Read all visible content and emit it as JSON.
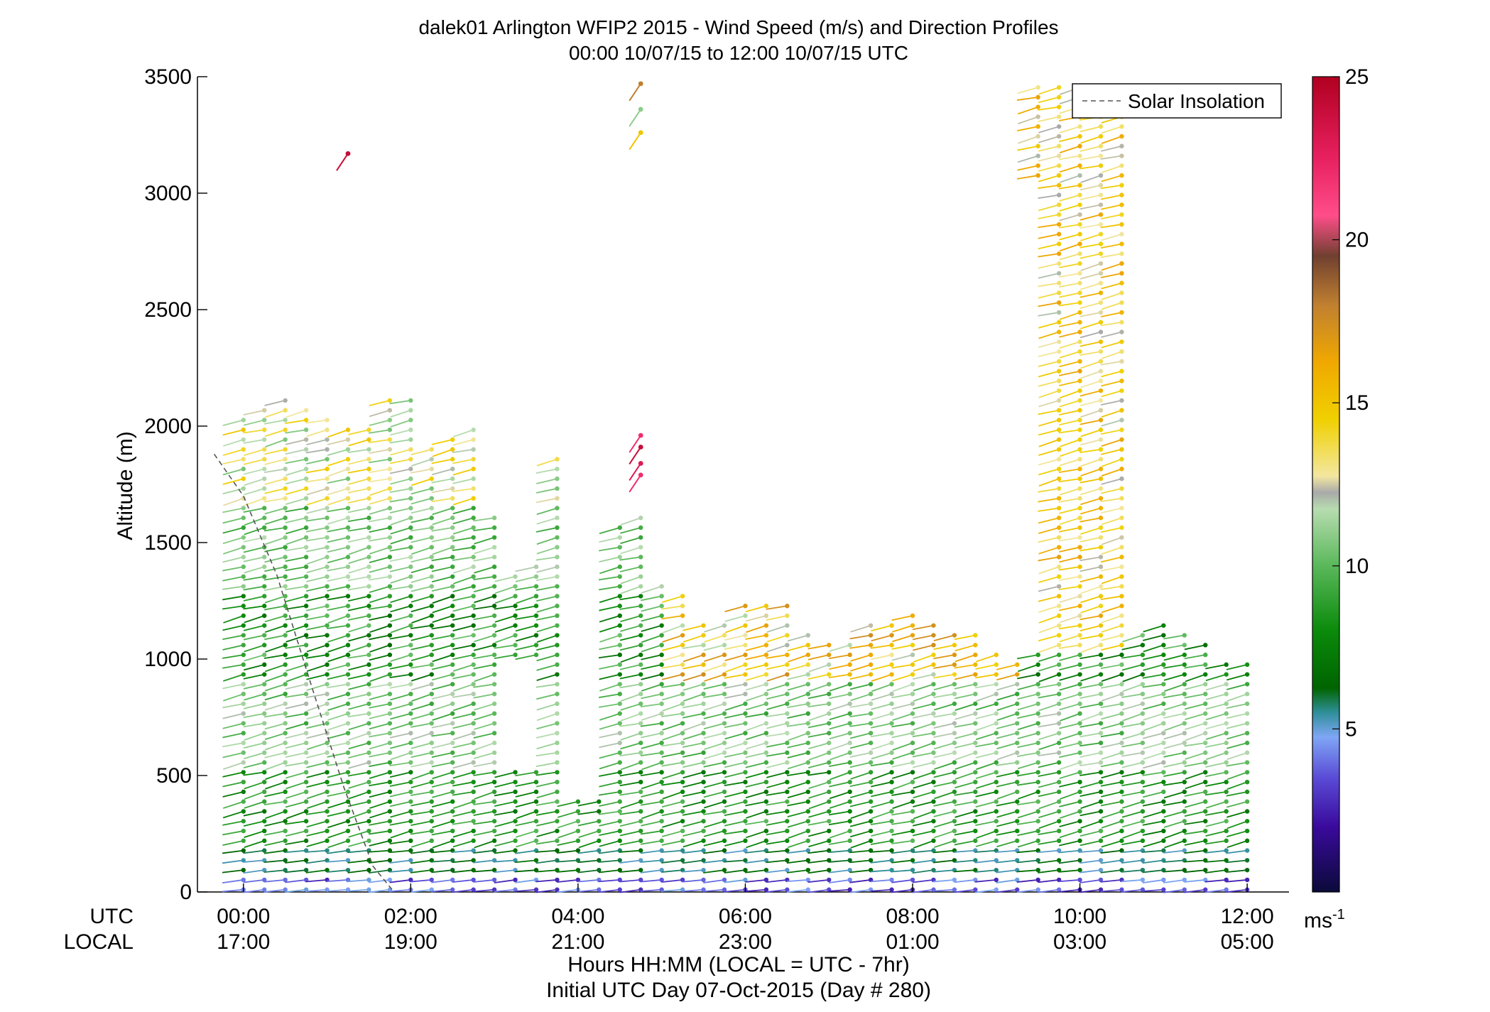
{
  "chart_data": {
    "type": "scatter",
    "title": "dalek01 Arlington WFIP2 2015 - Wind Speed (m/s) and Direction Profiles",
    "subtitle": "00:00 10/07/15 to 12:00 10/07/15  UTC",
    "ylabel": "Altitude (m)",
    "xlabel_line1": "Hours HH:MM  (LOCAL = UTC - 7hr)",
    "xlabel_line2": "Initial UTC Day 07-Oct-2015 (Day # 280)",
    "ylim": [
      0,
      3500
    ],
    "y_ticks": [
      "0",
      "500",
      "1000",
      "1500",
      "2000",
      "2500",
      "3000",
      "3500"
    ],
    "x_row_labels": [
      "UTC",
      "LOCAL"
    ],
    "x_ticks_utc": [
      "00:00",
      "02:00",
      "04:00",
      "06:00",
      "08:00",
      "10:00",
      "12:00"
    ],
    "x_ticks_local": [
      "17:00",
      "19:00",
      "21:00",
      "23:00",
      "01:00",
      "03:00",
      "05:00"
    ],
    "colorbar": {
      "range": [
        0,
        25
      ],
      "ticks": [
        "5",
        "10",
        "15",
        "20",
        "25"
      ],
      "unit": "ms",
      "unit_exp": "-1"
    },
    "legend": {
      "label": "Solar Insolation",
      "placement": "top-right"
    },
    "profile_tops_m": [
      [
        0.0,
        2060
      ],
      [
        0.25,
        2080
      ],
      [
        0.5,
        2130
      ],
      [
        0.75,
        2100
      ],
      [
        1.0,
        2050
      ],
      [
        1.25,
        2020
      ],
      [
        1.5,
        2010
      ],
      [
        1.75,
        2130
      ],
      [
        2.0,
        2140
      ],
      [
        2.25,
        1940
      ],
      [
        2.5,
        1980
      ],
      [
        2.75,
        2000
      ],
      [
        3.0,
        1620
      ],
      [
        3.25,
        1380
      ],
      [
        3.5,
        1400
      ],
      [
        3.75,
        1890
      ],
      [
        4.0,
        420
      ],
      [
        4.25,
        420
      ],
      [
        4.5,
        1570
      ],
      [
        4.75,
        1620
      ],
      [
        5.0,
        1340
      ],
      [
        5.25,
        1290
      ],
      [
        5.5,
        1150
      ],
      [
        5.75,
        1180
      ],
      [
        6.0,
        1230
      ],
      [
        6.25,
        1250
      ],
      [
        6.5,
        1230
      ],
      [
        6.75,
        1130
      ],
      [
        7.0,
        1060
      ],
      [
        7.25,
        1060
      ],
      [
        7.5,
        1160
      ],
      [
        7.75,
        1170
      ],
      [
        8.0,
        1190
      ],
      [
        8.25,
        1150
      ],
      [
        8.5,
        1120
      ],
      [
        8.75,
        1110
      ],
      [
        9.0,
        1040
      ],
      [
        9.25,
        1010
      ],
      [
        9.5,
        3460
      ],
      [
        9.75,
        3470
      ],
      [
        10.0,
        3470
      ],
      [
        10.25,
        3470
      ],
      [
        10.5,
        3470
      ],
      [
        10.75,
        1120
      ],
      [
        11.0,
        1150
      ],
      [
        11.25,
        1130
      ],
      [
        11.5,
        1080
      ],
      [
        11.75,
        1010
      ],
      [
        12.0,
        990
      ]
    ],
    "isolated_barbs": [
      {
        "t": 1.25,
        "alt": 3170,
        "speed": 24
      },
      {
        "t": 4.75,
        "alt": 3470,
        "speed": 18
      },
      {
        "t": 4.75,
        "alt": 3360,
        "speed": 11
      },
      {
        "t": 4.75,
        "alt": 3260,
        "speed": 15
      },
      {
        "t": 4.75,
        "alt": 1960,
        "speed": 22
      },
      {
        "t": 4.75,
        "alt": 1910,
        "speed": 24
      },
      {
        "t": 4.75,
        "alt": 1840,
        "speed": 23
      },
      {
        "t": 4.75,
        "alt": 1790,
        "speed": 22
      }
    ],
    "solar_insolation": [
      [
        -0.35,
        1880
      ],
      [
        0.0,
        1700
      ],
      [
        0.4,
        1360
      ],
      [
        0.8,
        900
      ],
      [
        1.2,
        450
      ],
      [
        1.55,
        110
      ],
      [
        1.8,
        0
      ]
    ]
  }
}
